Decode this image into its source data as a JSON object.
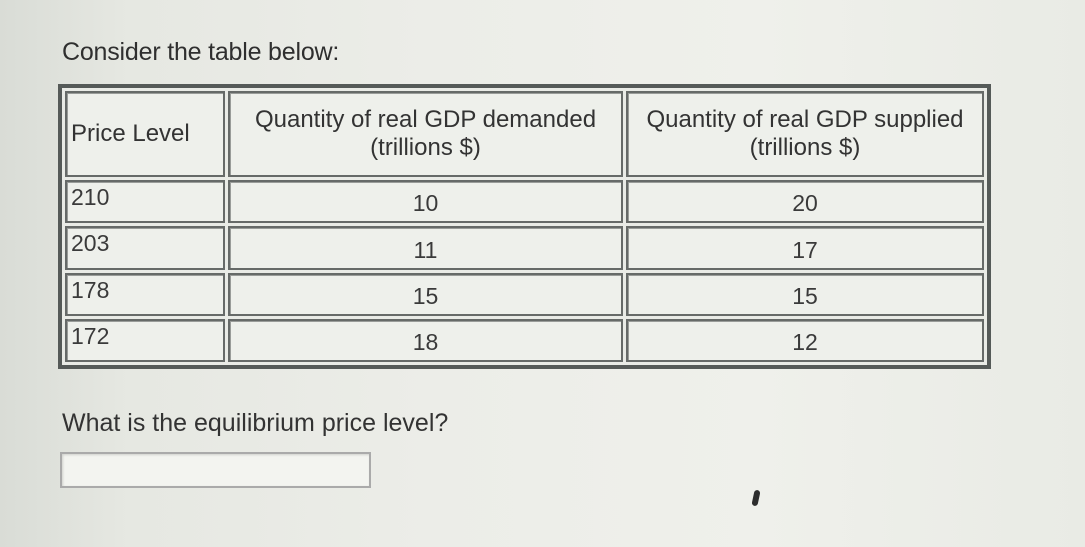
{
  "intro_text": "Consider the table below:",
  "table": {
    "headers": {
      "price": "Price Level",
      "demand_line1": "Quantity of real GDP demanded",
      "demand_line2": "(trillions $)",
      "supply_line1": "Quantity of real GDP supplied",
      "supply_line2": "(trillions $)"
    },
    "rows": [
      {
        "price": "210",
        "demanded": "10",
        "supplied": "20"
      },
      {
        "price": "203",
        "demanded": "11",
        "supplied": "17"
      },
      {
        "price": "178",
        "demanded": "15",
        "supplied": "15"
      },
      {
        "price": "172",
        "demanded": "18",
        "supplied": "12"
      }
    ]
  },
  "question": "What is the equilibrium price level?",
  "answer": {
    "value": "",
    "placeholder": ""
  }
}
